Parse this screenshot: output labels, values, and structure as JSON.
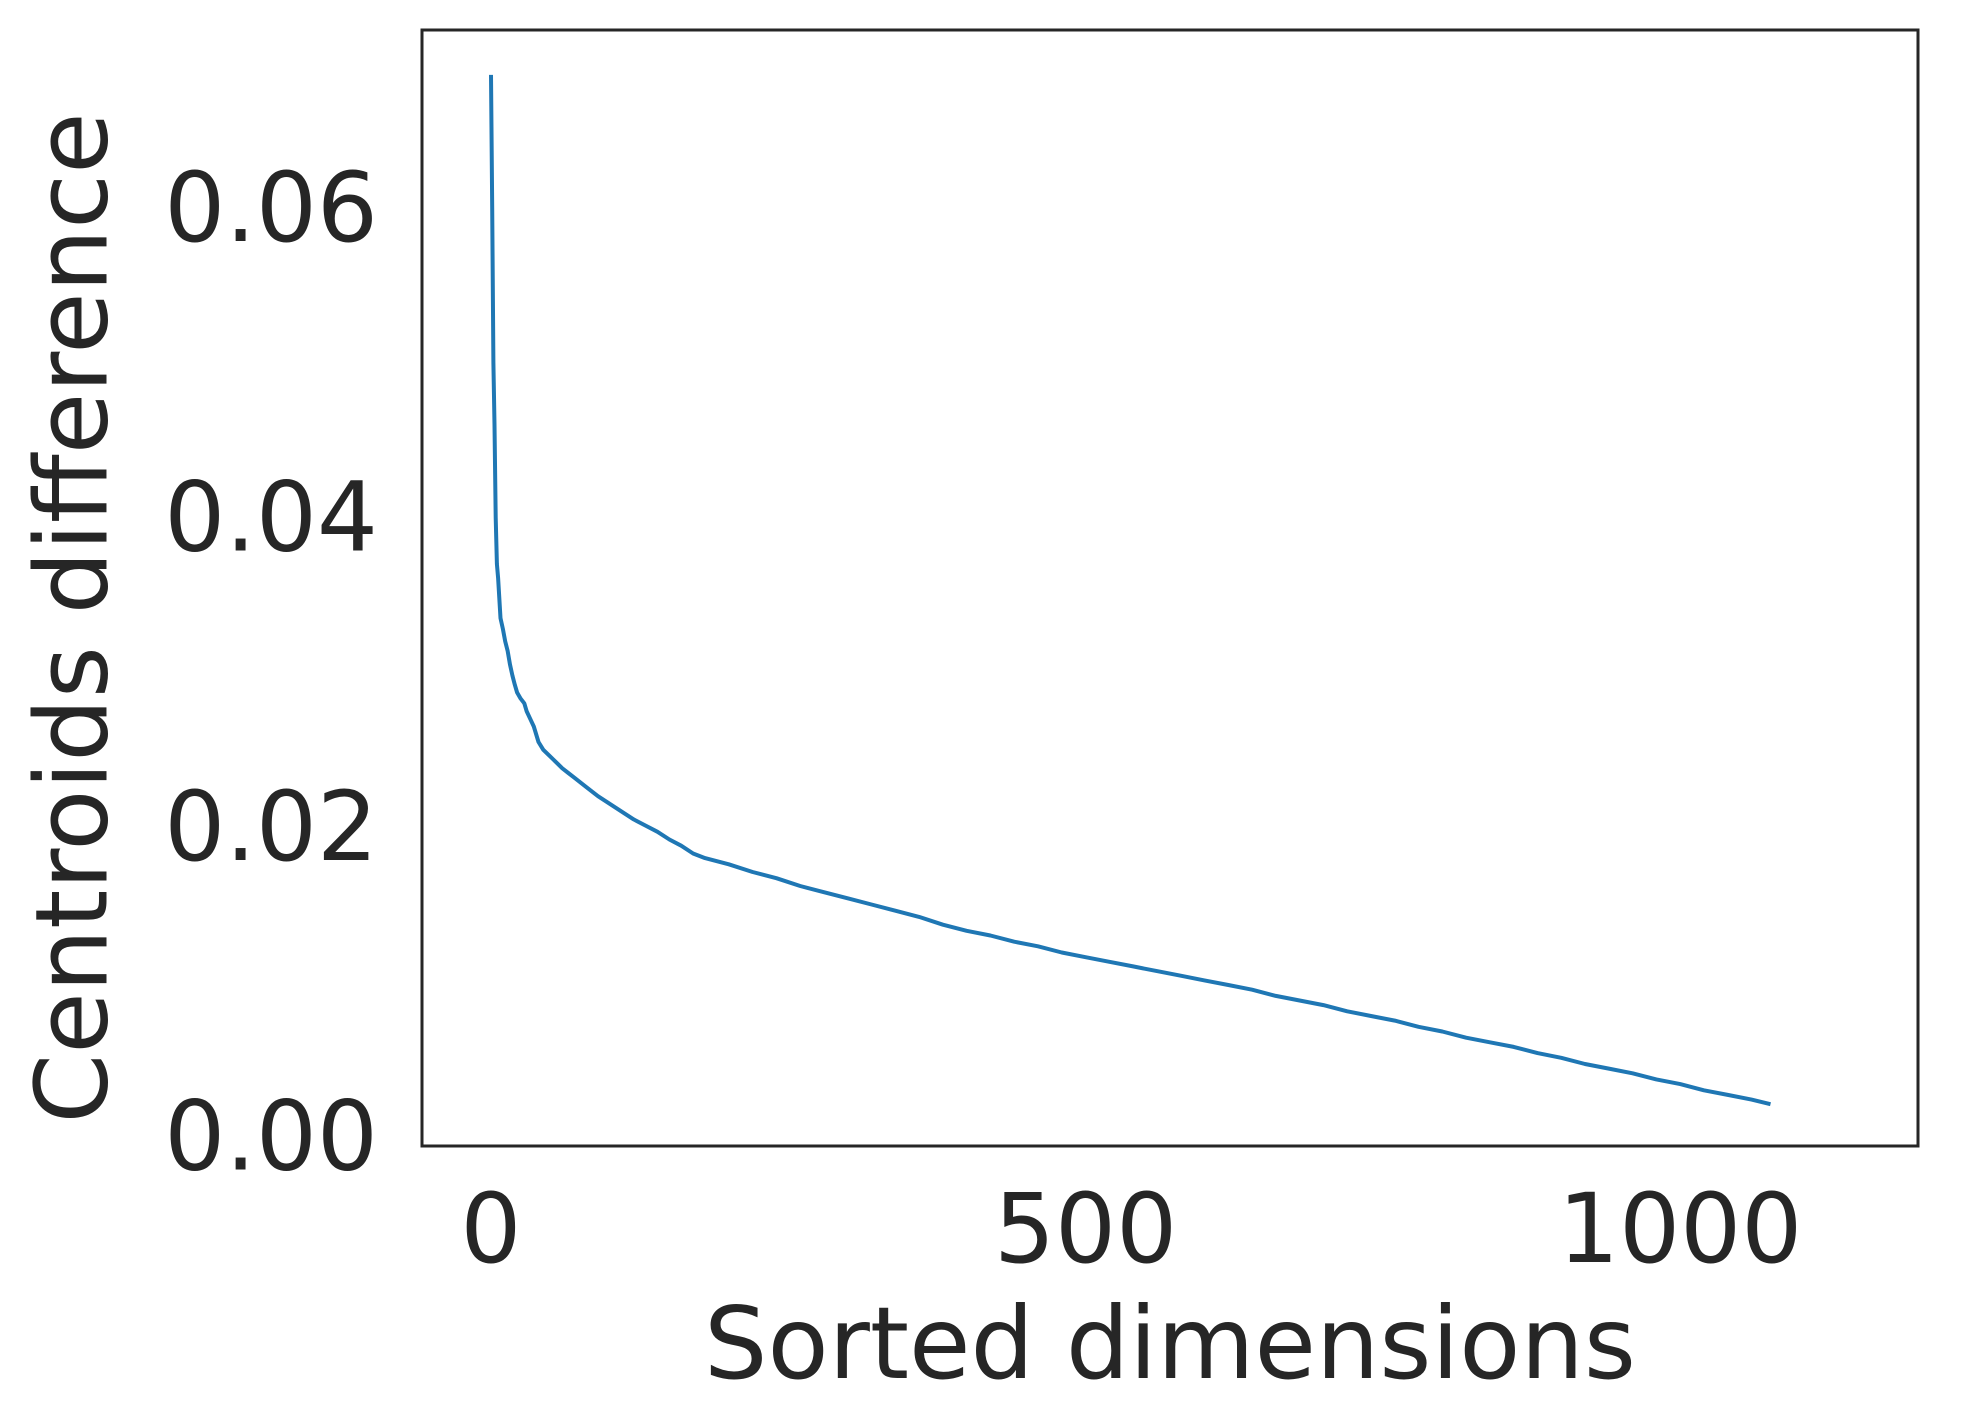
{
  "chart_data": {
    "type": "line",
    "title": "",
    "xlabel": "Sorted dimensions",
    "ylabel": "Centroids difference",
    "xlim": [
      -58,
      1200
    ],
    "ylim": [
      -0.0006,
      0.0715
    ],
    "xticks": [
      {
        "value": 0,
        "label": "0"
      },
      {
        "value": 500,
        "label": "500"
      },
      {
        "value": 1000,
        "label": "1000"
      }
    ],
    "yticks": [
      {
        "value": 0.0,
        "label": "0.00"
      },
      {
        "value": 0.02,
        "label": "0.02"
      },
      {
        "value": 0.04,
        "label": "0.04"
      },
      {
        "value": 0.06,
        "label": "0.06"
      }
    ],
    "grid": false,
    "legend": "none",
    "colors": {
      "line": "#1f77b4",
      "frame": "#262626",
      "text": "#262626"
    },
    "series": [
      {
        "x": [
          0,
          1,
          2,
          3,
          4,
          5,
          6,
          8,
          10,
          12,
          14,
          16,
          18,
          20,
          22,
          25,
          28,
          30,
          33,
          36,
          40,
          44,
          48,
          52,
          56,
          60,
          65,
          70,
          80,
          90,
          100,
          110,
          120,
          130,
          140,
          150,
          160,
          170,
          180,
          190,
          200,
          220,
          240,
          260,
          280,
          300,
          320,
          340,
          360,
          380,
          400,
          420,
          440,
          460,
          480,
          500,
          520,
          540,
          560,
          580,
          600,
          620,
          640,
          660,
          680,
          700,
          720,
          740,
          760,
          780,
          800,
          820,
          840,
          860,
          880,
          900,
          920,
          940,
          960,
          980,
          1000,
          1020,
          1040,
          1060,
          1076
        ],
        "y": [
          0.0686,
          0.06,
          0.05,
          0.046,
          0.04,
          0.037,
          0.0361,
          0.0335,
          0.0328,
          0.032,
          0.0314,
          0.0305,
          0.0298,
          0.0292,
          0.0287,
          0.0283,
          0.028,
          0.0275,
          0.027,
          0.0265,
          0.0255,
          0.025,
          0.0247,
          0.0244,
          0.0241,
          0.0238,
          0.0235,
          0.0232,
          0.0226,
          0.022,
          0.0215,
          0.021,
          0.0205,
          0.0201,
          0.0197,
          0.0192,
          0.0188,
          0.0183,
          0.018,
          0.0178,
          0.0176,
          0.0171,
          0.0167,
          0.0162,
          0.0158,
          0.0154,
          0.015,
          0.0146,
          0.0142,
          0.0137,
          0.0133,
          0.013,
          0.0126,
          0.0123,
          0.0119,
          0.0116,
          0.0113,
          0.011,
          0.0107,
          0.0104,
          0.0101,
          0.0098,
          0.0095,
          0.0091,
          0.0088,
          0.0085,
          0.0081,
          0.0078,
          0.0075,
          0.0071,
          0.0068,
          0.0064,
          0.0061,
          0.0058,
          0.0054,
          0.0051,
          0.0047,
          0.0044,
          0.0041,
          0.0037,
          0.0034,
          0.003,
          0.0027,
          0.0024,
          0.0021
        ]
      }
    ]
  }
}
